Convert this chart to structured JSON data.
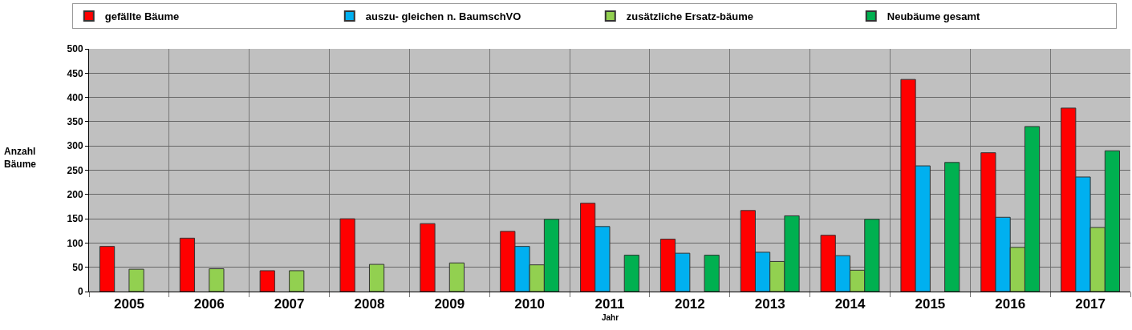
{
  "chart_data": {
    "type": "bar",
    "xlabel": "Jahr",
    "ylabel": "Anzahl\nBäume",
    "categories": [
      "2005",
      "2006",
      "2007",
      "2008",
      "2009",
      "2010",
      "2011",
      "2012",
      "2013",
      "2014",
      "2015",
      "2016",
      "2017"
    ],
    "series": [
      {
        "name": "gefällte Bäume",
        "color": "#ff0000",
        "values": [
          93,
          110,
          43,
          150,
          140,
          124,
          182,
          108,
          167,
          116,
          437,
          286,
          378
        ]
      },
      {
        "name": "auszu- gleichen n. BaumschVO",
        "color": "#00b0f0",
        "values": [
          null,
          null,
          null,
          null,
          null,
          93,
          134,
          79,
          81,
          74,
          259,
          153,
          236
        ]
      },
      {
        "name": "zusätzliche Ersatz-bäume",
        "color": "#92d050",
        "values": [
          46,
          47,
          43,
          56,
          59,
          55,
          null,
          null,
          62,
          44,
          null,
          91,
          132
        ]
      },
      {
        "name": "Neubäume gesamt",
        "color": "#00b050",
        "values": [
          null,
          null,
          null,
          null,
          null,
          149,
          75,
          75,
          156,
          149,
          266,
          340,
          290
        ]
      }
    ],
    "ylim": [
      0,
      500
    ],
    "yticks": [
      0,
      50,
      100,
      150,
      200,
      250,
      300,
      350,
      400,
      450,
      500
    ],
    "grid": true,
    "legend": "top"
  }
}
